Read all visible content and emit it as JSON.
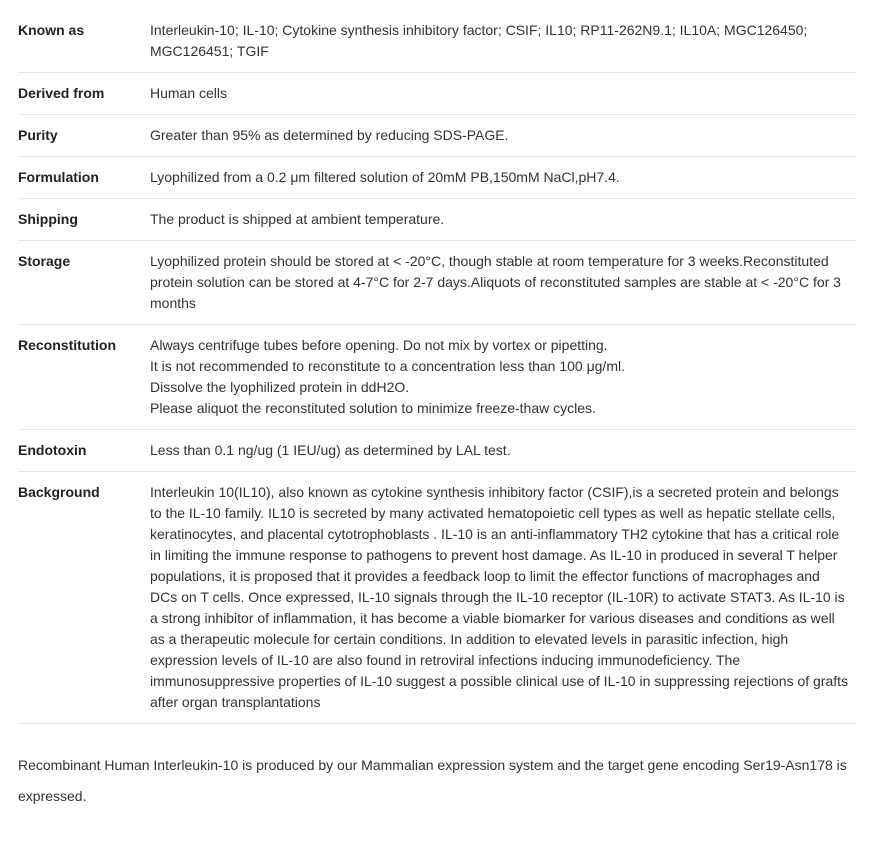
{
  "rows": [
    {
      "label": "Known as",
      "value": "Interleukin-10; IL-10; Cytokine synthesis inhibitory factor; CSIF; IL10; RP11-262N9.1; IL10A; MGC126450; MGC126451; TGIF",
      "multiline": false
    },
    {
      "label": "Derived from",
      "value": "Human cells",
      "multiline": false
    },
    {
      "label": "Purity",
      "value": "Greater than 95% as determined by reducing SDS-PAGE.",
      "multiline": false
    },
    {
      "label": "Formulation",
      "value": "Lyophilized from a 0.2 μm filtered solution of 20mM PB,150mM NaCl,pH7.4.",
      "multiline": false
    },
    {
      "label": "Shipping",
      "value": "The product is shipped at ambient temperature.",
      "multiline": false
    },
    {
      "label": "Storage",
      "value": "Lyophilized protein should be stored at < -20°C, though stable at room temperature for 3 weeks.Reconstituted protein solution can be stored at 4-7°C for 2-7 days.Aliquots of reconstituted samples are stable at < -20°C for 3 months",
      "multiline": false
    },
    {
      "label": "Reconstitution",
      "value": "Always centrifuge tubes before opening. Do not mix by vortex or pipetting.\nIt is not recommended to reconstitute to a concentration less than 100 μg/ml.\nDissolve the lyophilized protein in ddH2O.\nPlease aliquot the reconstituted solution to minimize freeze-thaw cycles.",
      "multiline": true
    },
    {
      "label": "Endotoxin",
      "value": "Less than 0.1 ng/ug (1 IEU/ug) as determined by LAL test.",
      "multiline": false
    },
    {
      "label": "Background",
      "value": "Interleukin 10(IL10), also known as cytokine synthesis inhibitory factor (CSIF),is a secreted protein and belongs to the IL-10 family. IL10 is secreted by many activated hematopoietic cell types as well as hepatic stellate cells, keratinocytes, and placental cytotrophoblasts . IL-10 is an anti-inflammatory TH2 cytokine that has a critical role in limiting the immune response to pathogens to prevent host damage. As IL-10 in produced in several T helper populations, it is proposed that it provides a feedback loop to limit the effector functions of macrophages and DCs on T cells. Once expressed, IL-10 signals through the IL-10 receptor (IL-10R) to activate STAT3. As IL-10 is a strong inhibitor of inflammation, it has become a viable biomarker for various diseases and conditions as well as a therapeutic molecule for certain conditions. In addition to elevated levels in parasitic infection, high expression levels of IL-10 are also found in retroviral infections inducing immunodeficiency. The immunosuppressive properties of IL-10 suggest a possible clinical use of IL-10 in suppressing rejections of grafts after organ transplantations",
      "multiline": false
    }
  ],
  "footer": "Recombinant Human Interleukin-10 is produced by our Mammalian expression system and the target gene encoding Ser19-Asn178 is expressed."
}
